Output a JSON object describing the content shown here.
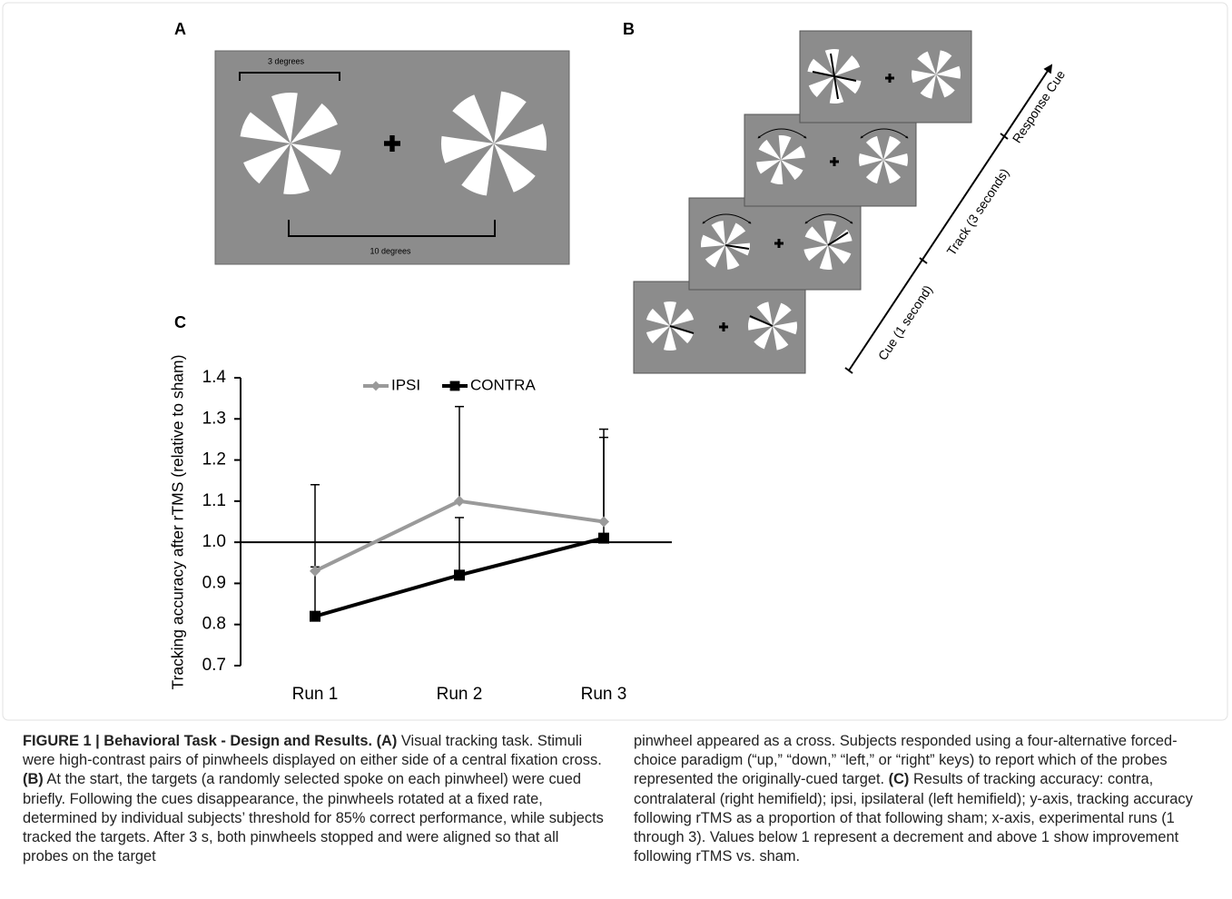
{
  "panels": {
    "A": {
      "label": "A",
      "scale_small": "3 degrees",
      "scale_large": "10 degrees"
    },
    "B": {
      "label": "B",
      "phases": [
        "Cue (1 second)",
        "Track (3 seconds)",
        "Response Cue"
      ]
    },
    "C": {
      "label": "C"
    }
  },
  "chart_data": {
    "type": "line",
    "y_label": "Tracking accuracy after rTMS (relative to sham)",
    "categories": [
      "Run 1",
      "Run 2",
      "Run 3"
    ],
    "series": [
      {
        "name": "IPSI",
        "color": "#9a9a9a",
        "marker": "diamond",
        "values": [
          0.93,
          1.1,
          1.05
        ],
        "errors": [
          0.21,
          0.23,
          0.205
        ]
      },
      {
        "name": "CONTRA",
        "color": "#000000",
        "marker": "square",
        "values": [
          0.82,
          0.92,
          1.01
        ],
        "errors": [
          0.12,
          0.14,
          0.265
        ]
      }
    ],
    "ylim": [
      0.7,
      1.4
    ],
    "yticks": [
      0.7,
      0.8,
      0.9,
      {
        "value": 1,
        "label": "1.0"
      },
      1.1,
      1.2,
      1.3,
      1.4
    ],
    "x_axis_at": 1,
    "legend": "top"
  },
  "caption": {
    "col1": [
      "FIGURE 1 | Behavioral Task - Design and Results.",
      "(A)",
      "Visual tracking task. Stimuli were high-contrast pairs of pinwheels displayed on either side of a central fixation cross.",
      "(B)",
      "At the start, the targets (a randomly selected spoke on each pinwheel) were cued briefly. Following the cues disappearance, the pinwheels rotated at a fixed rate, determined by individual subjects’ threshold for 85% correct performance, while subjects tracked the targets. After 3 s, both pinwheels stopped and were aligned so that all probes on the target"
    ],
    "col2": [
      "pinwheel appeared as a cross. Subjects responded using a four-alternative forced-choice paradigm (“up,” “down,” “left,” or “right” keys) to report which of the probes represented the originally-cued target.",
      "(C)",
      "Results of tracking accuracy: contra, contralateral (right hemifield); ipsi, ipsilateral (left hemifield); y-axis, tracking accuracy following rTMS as a proportion of that following sham; x-axis, experimental runs (1 through 3). Values below 1 represent a decrement and above 1 show improvement following rTMS vs. sham."
    ]
  }
}
